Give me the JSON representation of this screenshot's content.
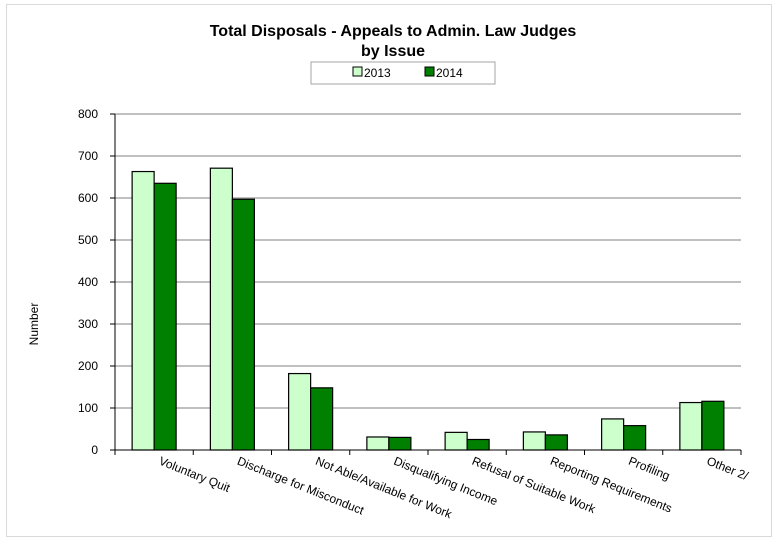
{
  "chart_data": {
    "type": "bar",
    "title": "Total Disposals -  Appeals to Admin. Law Judges",
    "subtitle": "by Issue",
    "ylabel": "Number",
    "xlabel": "",
    "ylim": [
      0,
      800
    ],
    "yticks": [
      0,
      100,
      200,
      300,
      400,
      500,
      600,
      700,
      800
    ],
    "grid": true,
    "legend_position": "top",
    "categories": [
      "Voluntary Quit",
      "Discharge for Misconduct",
      "Not Able/Available for Work",
      "Disqualifying Income",
      "Refusal of Suitable Work",
      "Reporting Requirements",
      "Profiling",
      "Other 2/"
    ],
    "series": [
      {
        "name": "2013",
        "color": "#ccffcc",
        "values": [
          663,
          671,
          182,
          31,
          42,
          43,
          74,
          113
        ]
      },
      {
        "name": "2014",
        "color": "#008000",
        "values": [
          635,
          597,
          148,
          30,
          25,
          36,
          58,
          116
        ]
      }
    ]
  }
}
